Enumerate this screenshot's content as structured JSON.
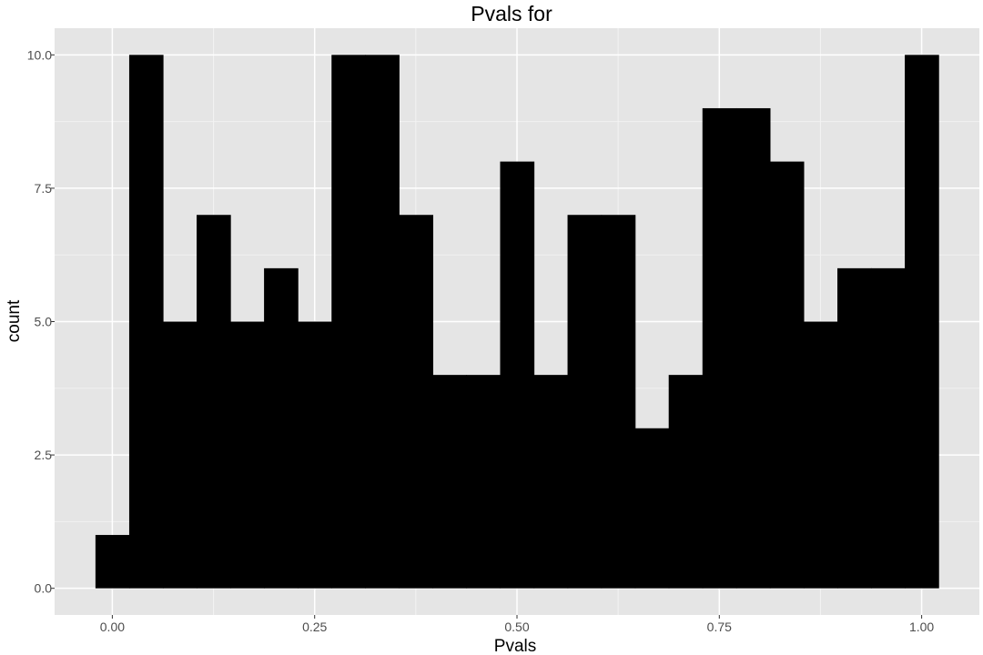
{
  "chart_data": {
    "type": "bar",
    "title": "Pvals for",
    "xlabel": "Pvals",
    "ylabel": "count",
    "xlim": [
      -0.0713,
      1.0713
    ],
    "ylim": [
      -0.5,
      10.5
    ],
    "x_ticks": [
      0.0,
      0.25,
      0.5,
      0.75,
      1.0
    ],
    "x_tick_labels": [
      "0.00",
      "0.25",
      "0.50",
      "0.75",
      "1.00"
    ],
    "y_ticks": [
      0.0,
      2.5,
      5.0,
      7.5,
      10.0
    ],
    "y_tick_labels": [
      "0.0",
      "2.5",
      "5.0",
      "7.5",
      "10.0"
    ],
    "bin_width": 0.04167,
    "bins": [
      {
        "center": 0.0,
        "count": 1
      },
      {
        "center": 0.0417,
        "count": 10
      },
      {
        "center": 0.0833,
        "count": 5
      },
      {
        "center": 0.125,
        "count": 7
      },
      {
        "center": 0.1667,
        "count": 5
      },
      {
        "center": 0.2083,
        "count": 6
      },
      {
        "center": 0.25,
        "count": 5
      },
      {
        "center": 0.2917,
        "count": 10
      },
      {
        "center": 0.3333,
        "count": 10
      },
      {
        "center": 0.375,
        "count": 7
      },
      {
        "center": 0.4167,
        "count": 4
      },
      {
        "center": 0.4583,
        "count": 4
      },
      {
        "center": 0.5,
        "count": 8
      },
      {
        "center": 0.5417,
        "count": 4
      },
      {
        "center": 0.5833,
        "count": 7
      },
      {
        "center": 0.625,
        "count": 7
      },
      {
        "center": 0.6667,
        "count": 3
      },
      {
        "center": 0.7083,
        "count": 4
      },
      {
        "center": 0.75,
        "count": 9
      },
      {
        "center": 0.7917,
        "count": 9
      },
      {
        "center": 0.8333,
        "count": 8
      },
      {
        "center": 0.875,
        "count": 5
      },
      {
        "center": 0.9167,
        "count": 6
      },
      {
        "center": 0.9583,
        "count": 6
      },
      {
        "center": 1.0,
        "count": 10
      }
    ],
    "grid": true,
    "colors": {
      "panel_background": "#e5e5e5",
      "grid_major": "#ffffff",
      "grid_minor": "#f2f2f2",
      "bar_fill": "#000000",
      "tick_text": "#4d4d4d"
    }
  }
}
